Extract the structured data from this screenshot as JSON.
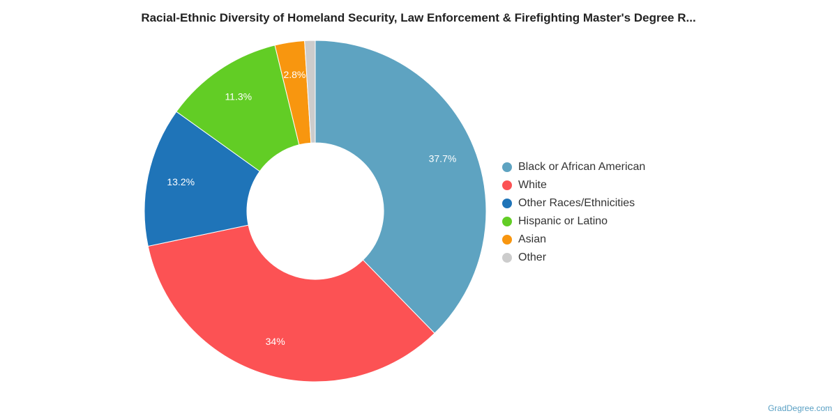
{
  "title": "Racial-Ethnic Diversity of Homeland Security, Law Enforcement & Firefighting Master's Degree R...",
  "credit": "GradDegree.com",
  "chart_data": {
    "type": "pie",
    "donut": true,
    "legend_position": "right",
    "slices": [
      {
        "label": "Black or African American",
        "value": 37.7,
        "data_label": "37.7%",
        "color": "#5ea3c1"
      },
      {
        "label": "White",
        "value": 34.0,
        "data_label": "34%",
        "color": "#fc5254"
      },
      {
        "label": "Other Races/Ethnicities",
        "value": 13.2,
        "data_label": "13.2%",
        "color": "#1f74b8"
      },
      {
        "label": "Hispanic or Latino",
        "value": 11.3,
        "data_label": "11.3%",
        "color": "#62cd25"
      },
      {
        "label": "Asian",
        "value": 2.8,
        "data_label": "2.8%",
        "color": "#f8960f"
      },
      {
        "label": "Other",
        "value": 1.0,
        "data_label": "",
        "color": "#cccccc"
      }
    ]
  }
}
